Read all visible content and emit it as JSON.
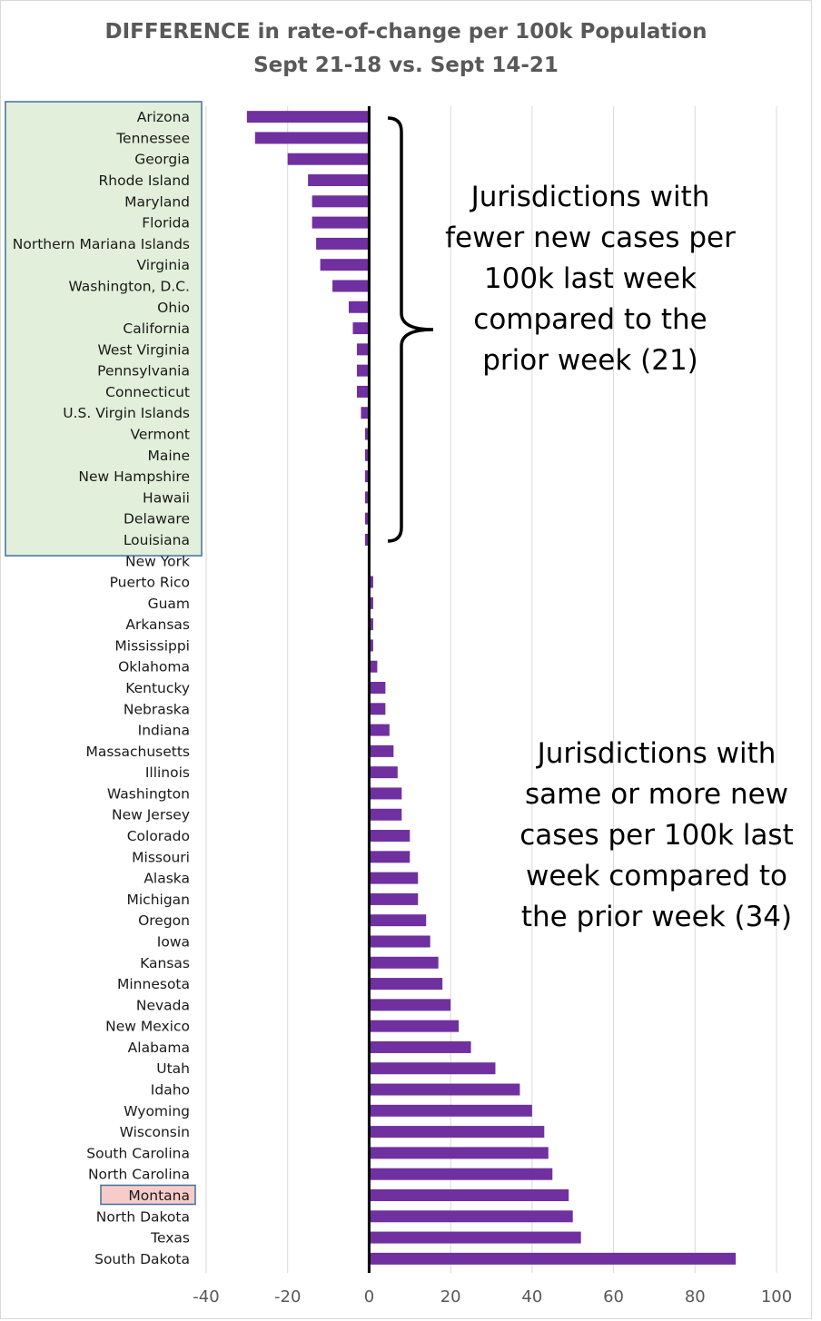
{
  "chart_data": {
    "type": "bar",
    "orientation": "horizontal",
    "title": "DIFFERENCE in rate-of-change per 100k Population",
    "subtitle": "Sept 21-18 vs. Sept 14-21",
    "xlabel": "",
    "ylabel": "",
    "xlim": [
      -40,
      100
    ],
    "xticks": [
      -40,
      -20,
      0,
      20,
      40,
      60,
      80,
      100
    ],
    "grid": "vertical",
    "bar_color": "#7030a0",
    "highlight_box_color": "#e2efda",
    "highlight_label_color": "#f8cbcb",
    "categories": [
      "Arizona",
      "Tennessee",
      "Georgia",
      "Rhode Island",
      "Maryland",
      "Florida",
      "Northern Mariana Islands",
      "Virginia",
      "Washington, D.C.",
      "Ohio",
      "California",
      "West Virginia",
      "Pennsylvania",
      "Connecticut",
      "U.S. Virgin Islands",
      "Vermont",
      "Maine",
      "New Hampshire",
      "Hawaii",
      "Delaware",
      "Louisiana",
      "New York",
      "Puerto Rico",
      "Guam",
      "Arkansas",
      "Mississippi",
      "Oklahoma",
      "Kentucky",
      "Nebraska",
      "Indiana",
      "Massachusetts",
      "Illinois",
      "Washington",
      "New Jersey",
      "Colorado",
      "Missouri",
      "Alaska",
      "Michigan",
      "Oregon",
      "Iowa",
      "Kansas",
      "Minnesota",
      "Nevada",
      "New Mexico",
      "Alabama",
      "Utah",
      "Idaho",
      "Wyoming",
      "Wisconsin",
      "South Carolina",
      "North Carolina",
      "Montana",
      "North Dakota",
      "Texas",
      "South Dakota"
    ],
    "values": [
      -30,
      -28,
      -20,
      -15,
      -14,
      -14,
      -13,
      -12,
      -9,
      -5,
      -4,
      -3,
      -3,
      -3,
      -2,
      -1,
      -1,
      -1,
      -1,
      -1,
      -1,
      0,
      1,
      1,
      1,
      1,
      2,
      4,
      4,
      5,
      6,
      7,
      8,
      8,
      10,
      10,
      12,
      12,
      14,
      15,
      17,
      18,
      20,
      22,
      25,
      31,
      37,
      40,
      43,
      44,
      45,
      49,
      50,
      52,
      90
    ],
    "highlighted_category": "Montana",
    "annotations": [
      "Jurisdictions with fewer new cases per 100k last week compared to the prior week (21)",
      "Jurisdictions with same or more new cases per 100k last week compared to the prior week (34)"
    ]
  },
  "annotation_lines": {
    "fewer": [
      "Jurisdictions with",
      "fewer new cases per",
      "100k last week",
      "compared to the",
      "prior week (21)"
    ],
    "more": [
      "Jurisdictions with",
      "same or more new",
      "cases per 100k last",
      "week compared to",
      "the prior week (34)"
    ]
  }
}
